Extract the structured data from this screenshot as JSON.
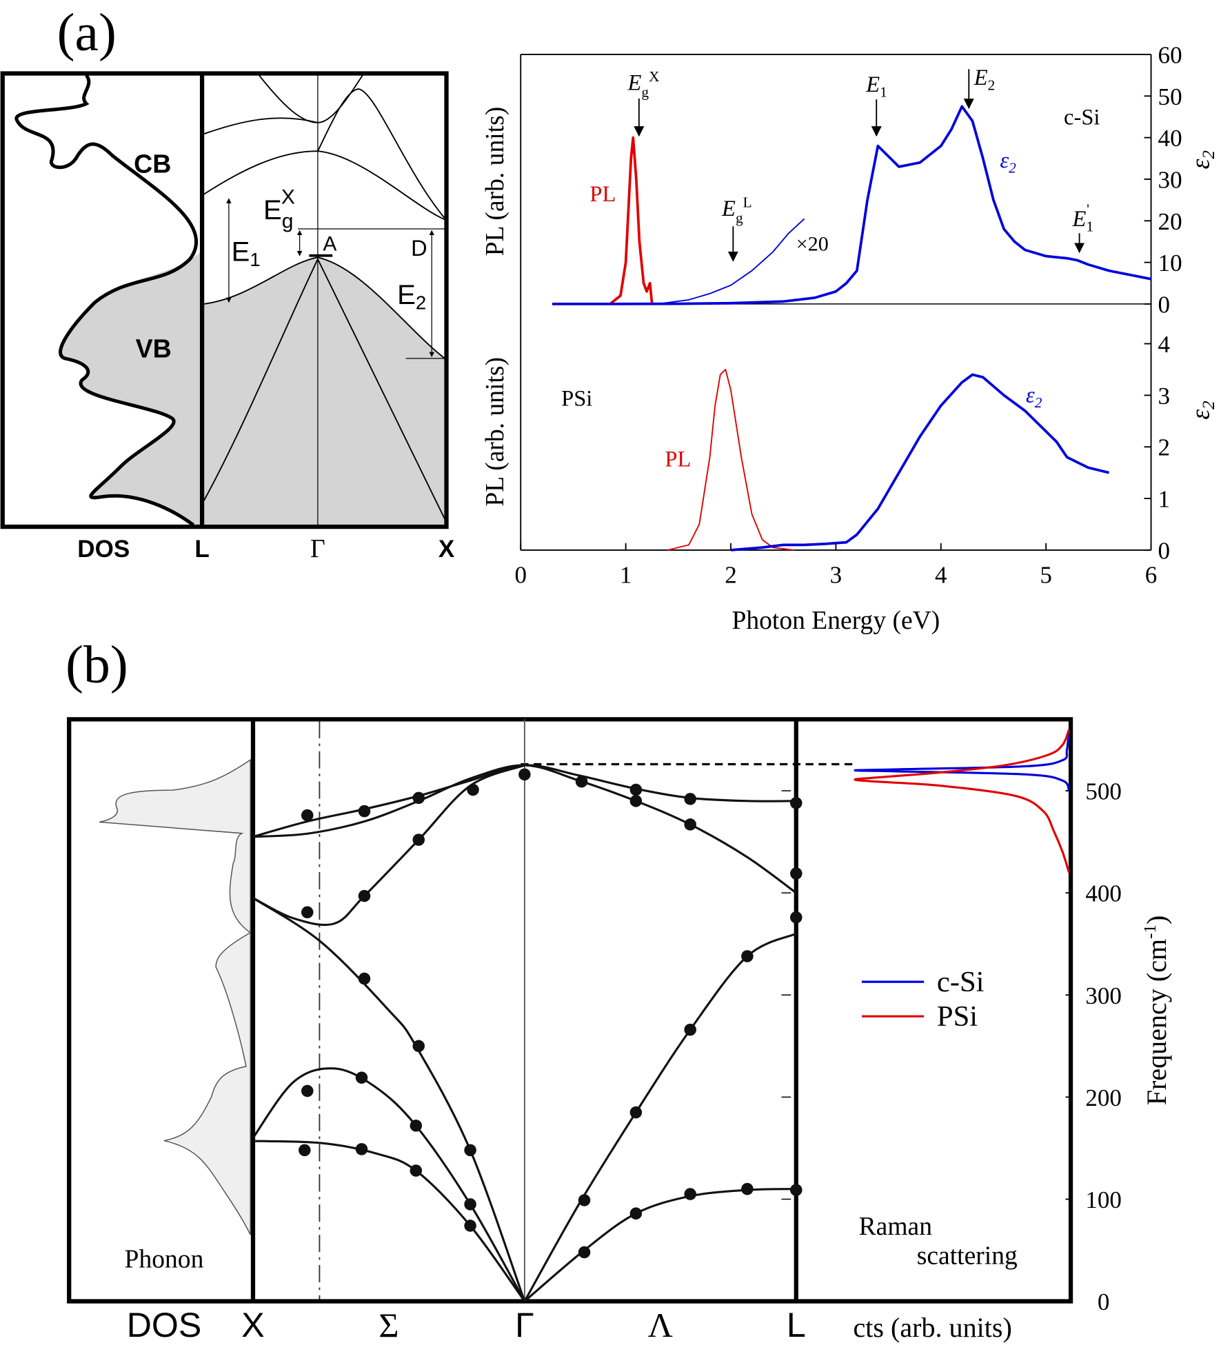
{
  "chart_data": [
    {
      "type": "band_structure",
      "panel_label": "(a)",
      "cb": "CB",
      "vb": "VB",
      "e1": {
        "main": "E",
        "sub": "1"
      },
      "egx": {
        "main": "E",
        "sub": "g",
        "sup": "X"
      },
      "a": "A",
      "d": "D",
      "e2": {
        "main": "E",
        "sub": "2"
      },
      "xlabels": [
        "DOS",
        "L",
        "Γ",
        "X"
      ]
    },
    {
      "type": "line",
      "ylabel": "PL (arb. units)",
      "y2label": {
        "main": "ε",
        "sub": "2"
      },
      "xlim": [
        0,
        6
      ],
      "y2lim": [
        0,
        60
      ],
      "y2ticks": [
        0,
        10,
        20,
        30,
        40,
        50,
        60
      ],
      "series": [
        {
          "name": "PL",
          "color": "#e00000",
          "axis": "y2",
          "x": [
            0.85,
            0.95,
            1.0,
            1.05,
            1.07,
            1.1,
            1.13,
            1.17,
            1.2,
            1.23,
            1.25
          ],
          "values": [
            0,
            2,
            10,
            35,
            40,
            30,
            15,
            5,
            3,
            5,
            0
          ]
        },
        {
          "name": {
            "main": "ε",
            "sub": "2"
          },
          "color": "#0000dd",
          "axis": "y2",
          "x": [
            0.3,
            0.8,
            1.5,
            2.0,
            2.5,
            2.8,
            3.0,
            3.1,
            3.2,
            3.3,
            3.4,
            3.6,
            3.8,
            4.0,
            4.1,
            4.2,
            4.3,
            4.4,
            4.5,
            4.6,
            4.7,
            4.8,
            5.0,
            5.2,
            5.3,
            5.4,
            5.6,
            5.8,
            6.0
          ],
          "values": [
            0,
            0,
            0.05,
            0.2,
            0.6,
            1.5,
            3,
            5,
            8,
            25,
            38,
            33,
            34,
            38,
            42,
            47.5,
            44,
            35,
            25,
            18,
            15,
            13,
            11.5,
            11,
            10.5,
            9.5,
            8,
            7,
            6
          ]
        },
        {
          "color": "#0000dd",
          "axis": "y2",
          "x": [
            1.3,
            1.6,
            1.8,
            2.0,
            2.2,
            2.4,
            2.55,
            2.7
          ],
          "values": [
            0,
            1,
            2.5,
            4.5,
            8,
            12.5,
            17,
            20.5
          ]
        }
      ],
      "annotations": {
        "c_si": "c-Si",
        "x20": "×20",
        "egx": {
          "main": "E",
          "sub": "g",
          "sup": "X"
        },
        "egl": {
          "main": "E",
          "sub": "g",
          "sup": "L"
        },
        "e1": {
          "main": "E",
          "sub": "1"
        },
        "e2": {
          "main": "E",
          "sub": "2"
        },
        "e1p": {
          "main": "E",
          "sub": "1",
          "sup": "'"
        }
      }
    },
    {
      "type": "line",
      "ylabel": "PL (arb. units)",
      "y2label": {
        "main": "ε",
        "sub": "2"
      },
      "xlim": [
        0,
        6
      ],
      "xticks": [
        0,
        1,
        2,
        3,
        4,
        5,
        6
      ],
      "xlabel": "Photon Energy (eV)",
      "y2lim": [
        0,
        4
      ],
      "y2ticks": [
        0,
        1,
        2,
        3,
        4
      ],
      "annotation": "PSi",
      "series": [
        {
          "name": "PL",
          "color": "#e00000",
          "axis": "y2",
          "x": [
            1.4,
            1.6,
            1.7,
            1.8,
            1.85,
            1.9,
            1.95,
            2.0,
            2.1,
            2.2,
            2.3,
            2.4,
            2.6
          ],
          "values": [
            0,
            0.1,
            0.5,
            1.8,
            2.8,
            3.4,
            3.5,
            3.1,
            1.8,
            0.7,
            0.2,
            0.05,
            0
          ]
        },
        {
          "name": {
            "main": "ε",
            "sub": "2"
          },
          "color": "#0000dd",
          "axis": "y2",
          "x": [
            2.0,
            2.3,
            2.5,
            2.7,
            2.9,
            3.1,
            3.2,
            3.4,
            3.6,
            3.8,
            4.0,
            4.2,
            4.3,
            4.4,
            4.6,
            4.8,
            5.0,
            5.1,
            5.2,
            5.4,
            5.6
          ],
          "values": [
            0,
            0.05,
            0.1,
            0.1,
            0.12,
            0.15,
            0.3,
            0.8,
            1.5,
            2.2,
            2.8,
            3.25,
            3.4,
            3.35,
            3.0,
            2.7,
            2.3,
            2.1,
            1.8,
            1.6,
            1.5
          ]
        }
      ]
    },
    {
      "type": "dispersion",
      "panel_label": "(b)",
      "dos_label": "DOS",
      "dos_annotation": "Phonon",
      "xlim": [
        0,
        2
      ],
      "xticks": [
        {
          "value": 0,
          "label": "X"
        },
        {
          "value": 0.5,
          "label": "Σ"
        },
        {
          "value": 1,
          "label": "Γ"
        },
        {
          "value": 1.5,
          "label": "Λ"
        },
        {
          "value": 2,
          "label": "L"
        }
      ],
      "ylim": [
        0,
        570
      ],
      "yticks": [
        0,
        100,
        200,
        300,
        400,
        500
      ],
      "ylabel": {
        "main": "Frequency (cm",
        "sup": "-1",
        "tail": ")"
      },
      "curves": [
        {
          "color": "#111111",
          "x": [
            0,
            0.2,
            0.41,
            0.61,
            0.8,
            1,
            1.2,
            1.41,
            1.61,
            1.82,
            2
          ],
          "values": [
            455,
            470,
            482,
            495,
            510,
            525,
            515,
            502,
            493,
            490,
            490
          ]
        },
        {
          "color": "#111111",
          "x": [
            0,
            0.2,
            0.41,
            0.61,
            0.8,
            1,
            1.2,
            1.41,
            1.61,
            1.82,
            2
          ],
          "values": [
            455,
            458,
            470,
            490,
            512,
            525,
            510,
            490,
            467,
            435,
            400
          ]
        },
        {
          "color": "#111111",
          "x": [
            0,
            0.15,
            0.3,
            0.41,
            0.61,
            0.8,
            1
          ],
          "values": [
            395,
            375,
            370,
            397,
            452,
            505,
            525
          ]
        },
        {
          "color": "#111111",
          "x": [
            0,
            0.25,
            0.5,
            0.6,
            0.8,
            1
          ],
          "values": [
            395,
            352,
            285,
            250,
            148,
            0
          ]
        },
        {
          "color": "#111111",
          "x": [
            1,
            1.2,
            1.41,
            1.61,
            1.82,
            2
          ],
          "values": [
            0,
            95,
            185,
            266,
            338,
            360
          ]
        },
        {
          "color": "#111111",
          "x": [
            0,
            0.15,
            0.3,
            0.45,
            0.6,
            0.8,
            1
          ],
          "values": [
            160,
            215,
            228,
            210,
            172,
            95,
            0
          ]
        },
        {
          "color": "#111111",
          "x": [
            0,
            0.25,
            0.45,
            0.6,
            0.8,
            1
          ],
          "values": [
            157,
            155,
            145,
            128,
            74,
            0
          ]
        },
        {
          "color": "#111111",
          "x": [
            1,
            1.22,
            1.41,
            1.61,
            1.82,
            2
          ],
          "values": [
            0,
            50,
            86,
            103,
            109,
            110
          ]
        }
      ],
      "points": {
        "color": "#111111",
        "x": [
          0.2,
          0.41,
          0.61,
          0.81,
          1.0,
          1.21,
          1.41,
          1.41,
          1.61,
          1.61,
          2.0,
          2.0,
          2.0,
          0.2,
          0.41,
          0.61,
          0.41,
          0.61,
          0.2,
          0.4,
          0.6,
          0.8,
          0.8,
          0.8,
          0.6,
          0.4,
          0.19,
          1.82,
          1.61,
          1.41,
          1.22,
          1.22,
          1.41,
          1.61,
          1.82,
          2.0
        ],
        "values": [
          476,
          480,
          493,
          501,
          516,
          509,
          501,
          490,
          492,
          467,
          488,
          419,
          376,
          381,
          397,
          452,
          316,
          250,
          206,
          219,
          172,
          148,
          95,
          74,
          128,
          149,
          148,
          338,
          266,
          185,
          99,
          48,
          86,
          105,
          110,
          109
        ]
      }
    },
    {
      "type": "raman",
      "xlabel": "cts (arb. units)",
      "annotation": [
        "Raman",
        "scattering"
      ],
      "series": [
        {
          "name": "c-Si",
          "color": "#0000dd",
          "frequency": [
            560,
            540,
            530,
            524,
            521,
            520,
            519,
            516,
            510,
            500
          ],
          "values": [
            0.0,
            0.01,
            0.03,
            0.2,
            0.8,
            1.0,
            0.8,
            0.2,
            0.03,
            0.0
          ]
        },
        {
          "name": "PSi",
          "color": "#e00000",
          "frequency": [
            560,
            545,
            535,
            525,
            518,
            513,
            511,
            509,
            505,
            495,
            480,
            460,
            440,
            420
          ],
          "values": [
            0.0,
            0.03,
            0.1,
            0.3,
            0.6,
            0.9,
            1.0,
            0.9,
            0.6,
            0.25,
            0.12,
            0.07,
            0.03,
            0.0
          ]
        }
      ]
    }
  ]
}
